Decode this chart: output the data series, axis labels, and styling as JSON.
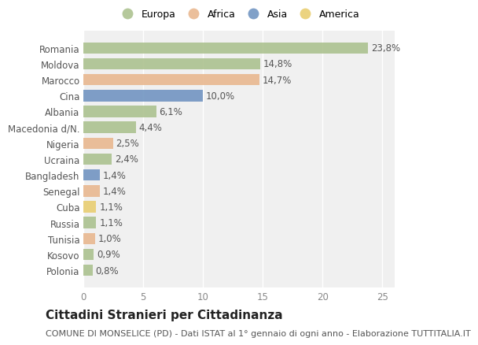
{
  "countries": [
    "Romania",
    "Moldova",
    "Marocco",
    "Cina",
    "Albania",
    "Macedonia d/N.",
    "Nigeria",
    "Ucraina",
    "Bangladesh",
    "Senegal",
    "Cuba",
    "Russia",
    "Tunisia",
    "Kosovo",
    "Polonia"
  ],
  "values": [
    23.8,
    14.8,
    14.7,
    10.0,
    6.1,
    4.4,
    2.5,
    2.4,
    1.4,
    1.4,
    1.1,
    1.1,
    1.0,
    0.9,
    0.8
  ],
  "labels": [
    "23,8%",
    "14,8%",
    "14,7%",
    "10,0%",
    "6,1%",
    "4,4%",
    "2,5%",
    "2,4%",
    "1,4%",
    "1,4%",
    "1,1%",
    "1,1%",
    "1,0%",
    "0,9%",
    "0,8%"
  ],
  "continents": [
    "Europa",
    "Europa",
    "Africa",
    "Asia",
    "Europa",
    "Europa",
    "Africa",
    "Europa",
    "Asia",
    "Africa",
    "America",
    "Europa",
    "Africa",
    "Europa",
    "Europa"
  ],
  "continent_colors": {
    "Europa": "#a8bf8a",
    "Africa": "#e8b48a",
    "Asia": "#6a8fbf",
    "America": "#e8cc6a"
  },
  "legend_order": [
    "Europa",
    "Africa",
    "Asia",
    "America"
  ],
  "title": "Cittadini Stranieri per Cittadinanza",
  "subtitle": "COMUNE DI MONSELICE (PD) - Dati ISTAT al 1° gennaio di ogni anno - Elaborazione TUTTITALIA.IT",
  "xlim": [
    0,
    26
  ],
  "xticks": [
    0,
    5,
    10,
    15,
    20,
    25
  ],
  "bg_color": "#ffffff",
  "plot_bg_color": "#f0f0f0",
  "grid_color": "#ffffff",
  "bar_height": 0.72,
  "label_fontsize": 8.5,
  "tick_fontsize": 8.5,
  "title_fontsize": 11,
  "subtitle_fontsize": 8
}
